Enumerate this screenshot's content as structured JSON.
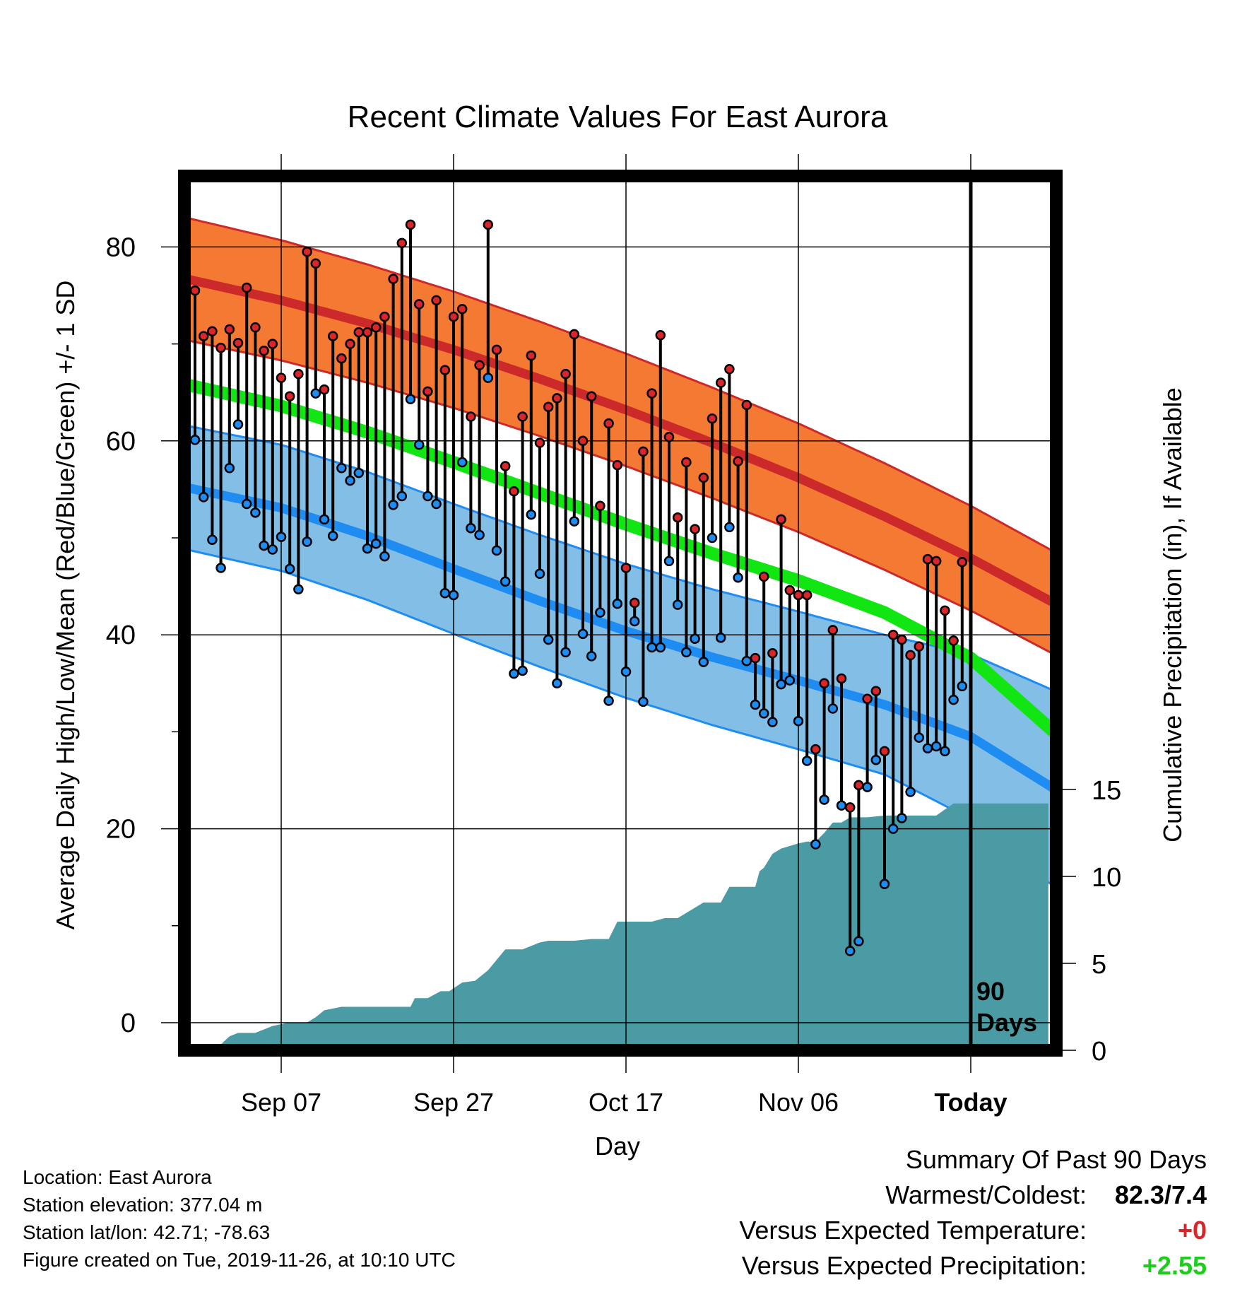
{
  "chart_data": {
    "type": "line",
    "title": "Recent Climate Values For East Aurora",
    "xlabel": "Day",
    "ylabel": "Average Daily High/Low/Mean (Red/Blue/Green) +/- 1 SD",
    "ylabel_right": "Cumulative Precipitation (in), If Available",
    "x_ticks": [
      "Sep 07",
      "Sep 27",
      "Oct 17",
      "Nov 06",
      "Today"
    ],
    "x_ticks_day": [
      10,
      30,
      50,
      70,
      90
    ],
    "y_ticks": [
      0,
      20,
      40,
      60,
      80
    ],
    "y_minor_ticks": [
      10,
      30,
      50,
      70
    ],
    "ylim": [
      -2,
      87
    ],
    "xlim": [
      -1,
      99
    ],
    "y2_ticks": [
      0,
      5,
      10,
      15
    ],
    "y2lim": [
      0,
      15
    ],
    "today_label": [
      "90",
      "Days"
    ],
    "grid": true,
    "normals": {
      "x": [
        0,
        10,
        20,
        30,
        40,
        50,
        60,
        70,
        80,
        90,
        99
      ],
      "high_mean": [
        76.5,
        74.5,
        72.1,
        69.4,
        66.4,
        63.2,
        59.8,
        56.2,
        52.2,
        47.9,
        43.6
      ],
      "high_sd": [
        6.3,
        6.2,
        6.1,
        6.0,
        5.9,
        5.8,
        5.7,
        5.6,
        5.5,
        5.4,
        5.3
      ],
      "low_mean": [
        55.0,
        53.1,
        50.2,
        46.8,
        43.5,
        40.4,
        37.7,
        35.3,
        32.8,
        29.5,
        24.5
      ],
      "low_sd": [
        6.4,
        6.5,
        6.6,
        6.7,
        6.8,
        6.9,
        7.0,
        7.1,
        7.2,
        8.5,
        10.0
      ],
      "mean": [
        65.6,
        63.6,
        60.9,
        57.8,
        54.6,
        51.4,
        48.4,
        45.6,
        42.3,
        37.6,
        30.5
      ],
      "colors": {
        "high_band": "#f47a33",
        "high_line": "#cc2a2a",
        "low_band": "#82bee6",
        "low_line": "#1f8cf2",
        "mean_line": "#12e612",
        "overlap": "#8a1519"
      }
    },
    "observed": {
      "high": [
        75.5,
        70.8,
        71.3,
        69.6,
        71.5,
        70.1,
        75.8,
        71.7,
        69.3,
        70.0,
        66.5,
        64.6,
        66.9,
        79.5,
        78.3,
        65.3,
        70.8,
        68.5,
        70.0,
        71.2,
        71.2,
        71.7,
        72.8,
        76.7,
        80.4,
        82.3,
        74.1,
        65.1,
        74.5,
        67.3,
        72.8,
        73.6,
        62.5,
        67.8,
        82.3,
        69.4,
        57.4,
        54.8,
        62.5,
        68.8,
        59.8,
        63.5,
        64.4,
        66.9,
        71.0,
        60.0,
        64.6,
        53.3,
        61.8,
        57.5,
        46.9,
        43.3,
        58.9,
        64.9,
        70.9,
        60.4,
        52.1,
        57.8,
        50.9,
        56.2,
        62.3,
        66.0,
        67.4,
        57.9,
        63.7,
        37.6,
        46.0,
        38.1,
        51.9,
        44.6,
        44.1,
        44.1,
        28.2,
        35.0,
        40.5,
        35.5,
        22.2,
        24.5,
        33.4,
        34.2,
        28.0,
        40.0,
        39.5,
        37.9,
        38.8,
        47.8,
        47.6,
        42.5,
        39.4,
        47.5
      ],
      "low": [
        60.1,
        54.2,
        49.8,
        46.9,
        57.2,
        61.7,
        53.5,
        52.6,
        49.2,
        48.8,
        50.1,
        46.8,
        44.7,
        49.6,
        64.9,
        51.9,
        50.2,
        57.2,
        55.9,
        56.7,
        48.9,
        49.4,
        48.1,
        53.4,
        54.3,
        64.3,
        59.6,
        54.3,
        53.5,
        44.3,
        44.1,
        57.8,
        51.0,
        50.3,
        66.5,
        48.7,
        45.5,
        36.0,
        36.3,
        52.4,
        46.3,
        39.5,
        35.0,
        38.2,
        51.7,
        40.1,
        37.8,
        42.3,
        33.2,
        43.2,
        36.2,
        41.4,
        33.1,
        38.7,
        38.7,
        47.6,
        43.1,
        38.2,
        39.6,
        37.2,
        50.0,
        39.7,
        51.1,
        45.9,
        37.3,
        32.8,
        31.9,
        31.0,
        34.9,
        35.3,
        31.1,
        27.0,
        18.4,
        23.0,
        32.4,
        22.4,
        7.4,
        8.4,
        24.3,
        27.1,
        14.3,
        20.0,
        21.1,
        23.8,
        29.4,
        28.3,
        28.5,
        28.0,
        33.3,
        34.7
      ]
    },
    "precip_cumulative": {
      "x": [
        0,
        2.5,
        4,
        5,
        7,
        9,
        11,
        13,
        14,
        15,
        17,
        19,
        21,
        23,
        25,
        25.5,
        27,
        28.5,
        29.5,
        31,
        32.5,
        34,
        36,
        38,
        40,
        41,
        42,
        44,
        46,
        48,
        49,
        50,
        51,
        53,
        54.5,
        56,
        59,
        60,
        61,
        62,
        64,
        65,
        65.5,
        66,
        67,
        68,
        70,
        71,
        72,
        73,
        74,
        75,
        76,
        77,
        78,
        80,
        83,
        86,
        88,
        91,
        99
      ],
      "y": [
        0,
        0.1,
        0.8,
        1.0,
        1.0,
        1.4,
        1.6,
        1.6,
        1.9,
        2.3,
        2.5,
        2.5,
        2.5,
        2.5,
        2.5,
        3.0,
        3.0,
        3.4,
        3.4,
        3.9,
        4.0,
        4.6,
        5.8,
        5.8,
        6.2,
        6.3,
        6.3,
        6.3,
        6.4,
        6.4,
        7.4,
        7.4,
        7.4,
        7.4,
        7.6,
        7.6,
        8.5,
        8.5,
        8.5,
        9.4,
        9.4,
        9.4,
        10.3,
        10.5,
        11.3,
        11.6,
        11.9,
        12.0,
        12.0,
        12.5,
        13.1,
        13.1,
        13.4,
        13.4,
        13.4,
        13.5,
        13.5,
        13.5,
        14.2,
        14.2,
        14.2
      ],
      "color": "#4a9ba3"
    }
  },
  "footer": {
    "location": "Location: East Aurora",
    "elevation": "Station elevation: 377.04 m",
    "latlon": "Station lat/lon: 42.71; -78.63",
    "created": "Figure created on Tue, 2019-11-26, at 10:10 UTC"
  },
  "summary": {
    "heading": "Summary Of Past 90 Days",
    "warmest_label": "Warmest/Coldest:",
    "warmest_value": "82.3/7.4",
    "temp_label": "Versus Expected Temperature:",
    "temp_value": "+0",
    "precip_label": "Versus Expected Precipitation:",
    "precip_value": "+2.55"
  }
}
